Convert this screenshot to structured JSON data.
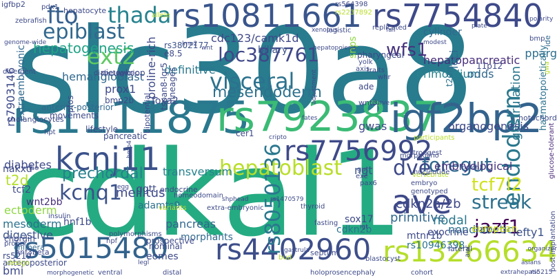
{
  "words": [
    {
      "text": "slc30a8",
      "color": "#287c8e"
    },
    {
      "text": "cdkal1",
      "color": "#25ab82"
    },
    {
      "text": "rs1111875",
      "color": "#2a788e"
    },
    {
      "text": "rs7923837",
      "color": "#3bbb75"
    },
    {
      "text": "igf2bp2",
      "color": "#33638d"
    },
    {
      "text": "rs10811661",
      "color": "#39558c"
    },
    {
      "text": "rs7754840",
      "color": "#3e4a89"
    },
    {
      "text": "kcnj11",
      "color": "#3b528b"
    },
    {
      "text": "rs7756992",
      "color": "#3e4a89"
    },
    {
      "text": "rs5015480",
      "color": "#33638d"
    },
    {
      "text": "rs4402960",
      "color": "#3d4e8a"
    },
    {
      "text": "rs13266634",
      "color": "#b5de2b"
    },
    {
      "text": "ave",
      "color": "#3e4989"
    },
    {
      "text": "endoderm",
      "color": "#2a788e"
    },
    {
      "text": "visceral",
      "color": "#2c728e"
    },
    {
      "text": "hepatoblast",
      "color": "#b8de29"
    },
    {
      "text": "ext2",
      "color": "#5ec962"
    },
    {
      "text": "fto",
      "color": "#355f8d"
    },
    {
      "text": "thada",
      "color": "#26828e"
    },
    {
      "text": "epiblast",
      "color": "#31688e"
    },
    {
      "text": "hepatogenesis",
      "color": "#20a386"
    },
    {
      "text": "loc387761",
      "color": "#3f4788"
    },
    {
      "text": "wfs1",
      "color": "#46337e"
    },
    {
      "text": "mesendoderm",
      "color": "#2d718e"
    },
    {
      "text": "kcnq1",
      "color": "#3b528b"
    },
    {
      "text": "rs8050136",
      "color": "#2a788e"
    },
    {
      "text": "foregut",
      "color": "#31688e"
    },
    {
      "text": "dve",
      "color": "#3e4a89"
    },
    {
      "text": "tcf7l2",
      "color": "#d0e11c"
    },
    {
      "text": "streak",
      "color": "#2d718e"
    },
    {
      "text": "jazf1",
      "color": "#440154"
    },
    {
      "text": "gastrulation",
      "color": "#2a778e"
    },
    {
      "text": "haematopoietically",
      "color": "#2c728e"
    },
    {
      "text": "glucose-tolerant",
      "color": "#482878"
    },
    {
      "text": "post-implantation",
      "color": "#3e4a89"
    },
    {
      "text": "pparg",
      "color": "#2e6e8e"
    },
    {
      "text": "cdc123/camk1d",
      "color": "#3f4788"
    },
    {
      "text": "hepatopancreatic",
      "color": "#472d7b"
    },
    {
      "text": "primordium",
      "color": "#26828e"
    },
    {
      "text": "definitive",
      "color": "#2a788e"
    },
    {
      "text": "biliary",
      "color": "#3b528b"
    },
    {
      "text": "hemangioblast",
      "color": "#31688e"
    },
    {
      "text": "prox1",
      "color": "#3e4a89"
    },
    {
      "text": "cylinder",
      "color": "#31688e"
    },
    {
      "text": "transversum",
      "color": "#26828e"
    },
    {
      "text": "prechordal",
      "color": "#27808e"
    },
    {
      "text": "t2d",
      "color": "#b5de2b"
    },
    {
      "text": "diabetes",
      "color": "#3e4a89"
    },
    {
      "text": "ngt",
      "color": "#3b528b"
    },
    {
      "text": "primitive",
      "color": "#31688e"
    },
    {
      "text": "cdkn2a/2b",
      "color": "#3e4989"
    },
    {
      "text": "mellitus",
      "color": "#3e4989"
    },
    {
      "text": "nodal",
      "color": "#2a788e"
    },
    {
      "text": "embryological",
      "color": "#46337e"
    },
    {
      "text": "nondiabetic",
      "color": "#2c728e"
    },
    {
      "text": "lefty1",
      "color": "#3b528b"
    },
    {
      "text": "european",
      "color": "#d8e219"
    },
    {
      "text": "ectoderm",
      "color": "#8fd744"
    },
    {
      "text": "mesoderm",
      "color": "#2c728e"
    },
    {
      "text": "digestive",
      "color": "#3b528b"
    },
    {
      "text": "pancreas",
      "color": "#32658e"
    },
    {
      "text": "morphants",
      "color": "#31688e"
    },
    {
      "text": "hnf1b",
      "color": "#3e4a89"
    },
    {
      "text": "mtnr1b",
      "color": "#3e4a89"
    },
    {
      "text": "sox17",
      "color": "#3e4a89"
    },
    {
      "text": "cdkn2b",
      "color": "#2c728e"
    },
    {
      "text": "exocrine",
      "color": "#3e4989"
    },
    {
      "text": "rs10946398",
      "color": "#2c728e"
    },
    {
      "text": "bmi",
      "color": "#3e4a89"
    },
    {
      "text": "wnt2bb",
      "color": "#472d7b"
    },
    {
      "text": "tcf2",
      "color": "#3e4a89"
    },
    {
      "text": "adamts9",
      "color": "#2d718e"
    },
    {
      "text": "ggtt",
      "color": "#3e4a89"
    },
    {
      "text": "foxa2",
      "color": "#3e4a89"
    },
    {
      "text": "loci",
      "color": "#31688e"
    },
    {
      "text": "organogenesis",
      "color": "#3e4989"
    },
    {
      "text": "odds",
      "color": "#31688e"
    },
    {
      "text": "gwas",
      "color": "#3e4989"
    },
    {
      "text": "snps",
      "color": "#8fd744"
    },
    {
      "text": "rs7903146",
      "color": "#3e4a89"
    },
    {
      "text": "extraembryonic",
      "color": "#31688e"
    },
    {
      "text": "proline-rich",
      "color": "#3e4989"
    },
    {
      "text": "anterior-posterior",
      "color": "#31688e"
    },
    {
      "text": "igfbp2",
      "color": "#3e4a89"
    },
    {
      "text": "11p12",
      "color": "#3e4a89"
    },
    {
      "text": "t2dm",
      "color": "#2c728e"
    },
    {
      "text": "ide",
      "color": "#31688e"
    },
    {
      "text": "rs564398",
      "color": "#3e4989"
    },
    {
      "text": "rs2237892",
      "color": "#b8de29"
    },
    {
      "text": "rs3802177",
      "color": "#3b528b"
    },
    {
      "text": "e8.5",
      "color": "#3e4a89"
    },
    {
      "text": "nakxd",
      "color": "#3e4a89"
    },
    {
      "text": "bipotential",
      "color": "#3e4989"
    },
    {
      "text": "cholangiocytes",
      "color": "#3e4a89"
    },
    {
      "text": "chordin",
      "color": "#3e4a89"
    },
    {
      "text": "prospective",
      "color": "#3e4a89"
    },
    {
      "text": "nominal",
      "color": "#3e4a89"
    },
    {
      "text": "eomes",
      "color": "#3e4a89"
    },
    {
      "text": "chimera",
      "color": "#31688e"
    },
    {
      "text": "rs5219",
      "color": "#3e4989"
    },
    {
      "text": "anteroposterior",
      "color": "#3e4a89"
    },
    {
      "text": "hnf3beta",
      "color": "#3e4a89"
    },
    {
      "text": "rs5215",
      "color": "#3e4a89"
    },
    {
      "text": "lateral",
      "color": "#3e4989"
    },
    {
      "text": "notochord",
      "color": "#3e4a89"
    },
    {
      "text": "cer1",
      "color": "#3e4a89"
    },
    {
      "text": "endocrine",
      "color": "#3e4a89"
    },
    {
      "text": "homeodomain",
      "color": "#3e4a89"
    },
    {
      "text": "pharyngeal",
      "color": "#3e4a89"
    },
    {
      "text": "yolk",
      "color": "#3e4a89"
    },
    {
      "text": "axis",
      "color": "#3e4a89"
    },
    {
      "text": "logistic",
      "color": "#3e4a89"
    },
    {
      "text": "replicated",
      "color": "#3e4a89"
    },
    {
      "text": "ade",
      "color": "#3e4a89"
    },
    {
      "text": "whr",
      "color": "#3e4a89"
    },
    {
      "text": "wnt3",
      "color": "#3e4a89"
    },
    {
      "text": "traits",
      "color": "#3e4a89"
    },
    {
      "text": "nieuwkoop",
      "color": "#3e4a89"
    },
    {
      "text": "bmp2b",
      "color": "#3e4a89"
    },
    {
      "text": "movements",
      "color": "#3e4a89"
    },
    {
      "text": "divergent",
      "color": "#3e4a89"
    },
    {
      "text": "zebrafish",
      "color": "#3e4a89"
    },
    {
      "text": "pdx1",
      "color": "#3e4a89"
    },
    {
      "text": "hepatocyte",
      "color": "#3e4a89"
    },
    {
      "text": "allele",
      "color": "#b8de29"
    },
    {
      "text": "lineages",
      "color": "#3e4a89"
    },
    {
      "text": "tspan8-lgr5",
      "color": "#3e4a89"
    },
    {
      "text": "diabetogenic",
      "color": "#3e4a89"
    },
    {
      "text": "pfos",
      "color": "#3e4a89"
    },
    {
      "text": "lifestyle",
      "color": "#3e4a89"
    },
    {
      "text": "pancreatic",
      "color": "#3e4a89"
    },
    {
      "text": "hpt",
      "color": "#3e4a89"
    },
    {
      "text": "rise",
      "color": "#3e4a89"
    },
    {
      "text": "insulin",
      "color": "#3e4a89"
    },
    {
      "text": "proper",
      "color": "#3e4a89"
    },
    {
      "text": "design",
      "color": "#b8de29"
    },
    {
      "text": "polymorphisms",
      "color": "#3e4a89"
    },
    {
      "text": "hpf",
      "color": "#3e4a89"
    },
    {
      "text": "ventral",
      "color": "#3e4a89"
    },
    {
      "text": "morphogenetic",
      "color": "#3e4a89"
    },
    {
      "text": "distal",
      "color": "#3e4a89"
    },
    {
      "text": "holoprosencephaly",
      "color": "#3e4a89"
    },
    {
      "text": "cohort",
      "color": "#3e4a89"
    },
    {
      "text": "extrahepatic",
      "color": "#3e4a89"
    },
    {
      "text": "auc",
      "color": "#3e4a89"
    },
    {
      "text": "organizer",
      "color": "#3e4a89"
    },
    {
      "text": "asians",
      "color": "#3e4a89"
    },
    {
      "text": "vertebrate",
      "color": "#b8de29"
    },
    {
      "text": "embryo",
      "color": "#3e4a89"
    },
    {
      "text": "genotyped",
      "color": "#3e4a89"
    },
    {
      "text": "nucleotide",
      "color": "#3e4a89"
    },
    {
      "text": "gut",
      "color": "#3e4a89"
    },
    {
      "text": "exe",
      "color": "#3e4a89"
    },
    {
      "text": "pax6",
      "color": "#3e4a89"
    },
    {
      "text": "morpholino",
      "color": "#3e4a89"
    },
    {
      "text": "strongest",
      "color": "#3e4a89"
    },
    {
      "text": "shp",
      "color": "#3e4a89"
    },
    {
      "text": "head",
      "color": "#3e4a89"
    },
    {
      "text": "rs1470579",
      "color": "#3e4a89"
    },
    {
      "text": "extra-embryonic",
      "color": "#3e4a89"
    },
    {
      "text": "variants",
      "color": "#b8de29"
    },
    {
      "text": "bud",
      "color": "#b8de29"
    },
    {
      "text": "septum",
      "color": "#3e4a89"
    },
    {
      "text": "thyroid",
      "color": "#3e4a89"
    },
    {
      "text": "fasting",
      "color": "#3e4a89"
    },
    {
      "text": "gastrula",
      "color": "#3e4a89"
    },
    {
      "text": "blastocyst",
      "color": "#3e4a89"
    },
    {
      "text": "cripto",
      "color": "#3e4a89"
    },
    {
      "text": "curve",
      "color": "#3e4a89"
    },
    {
      "text": "fates",
      "color": "#3e4a89"
    },
    {
      "text": "adjustment",
      "color": "#3e4a89"
    },
    {
      "text": "hepatopoiesis",
      "color": "#3e4a89"
    },
    {
      "text": "xenopus",
      "color": "#3e4a89"
    },
    {
      "text": "fail",
      "color": "#3e4a89"
    },
    {
      "text": "modest",
      "color": "#3e4a89"
    },
    {
      "text": "plate",
      "color": "#3e4a89"
    },
    {
      "text": "polarity",
      "color": "#3e4a89"
    },
    {
      "text": "bmp",
      "color": "#3e4a89"
    },
    {
      "text": "gwa",
      "color": "#b8de29"
    },
    {
      "text": "participants",
      "color": "#b8de29"
    },
    {
      "text": "igt",
      "color": "#3e4a89"
    },
    {
      "text": "legl",
      "color": "#3e4a89"
    },
    {
      "text": "wnt",
      "color": "#3e4a89"
    },
    {
      "text": "lmo2",
      "color": "#3e4a89"
    },
    {
      "text": "genome-wide",
      "color": "#3e4a89"
    },
    {
      "text": "egg",
      "color": "#3e4a89"
    },
    {
      "text": "bmp4",
      "color": "#3e4a89"
    },
    {
      "text": "notch2",
      "color": "#3e4a89"
    },
    {
      "text": "liver",
      "color": "#b8de29"
    }
  ]
}
